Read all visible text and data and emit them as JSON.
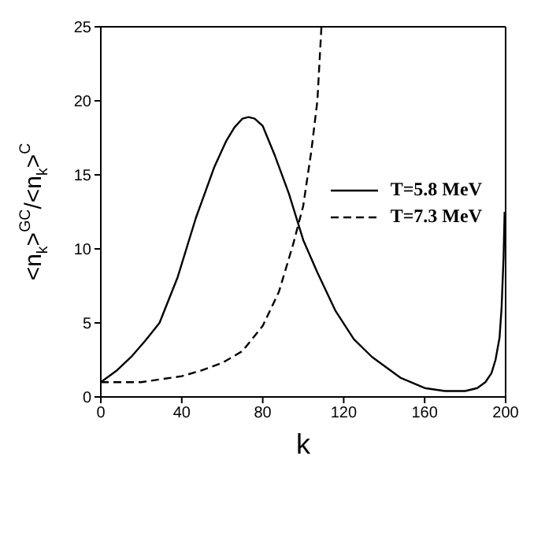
{
  "chart_data": {
    "type": "line",
    "xlabel": "k",
    "ylabel": "<n$_{k}$>$^{GC}$/<n$_{k}$>$^{C}$",
    "xlim": [
      0,
      200
    ],
    "xticks": [
      0,
      40,
      80,
      120,
      160,
      200
    ],
    "ylim": [
      0,
      25
    ],
    "yticks": [
      0,
      5,
      10,
      15,
      20,
      25
    ],
    "legend": "right",
    "grid": false,
    "marker": "none",
    "series": [
      {
        "name": "T=5.8 MeV",
        "color": "#000000",
        "line_style": "solid",
        "x": [
          0,
          8,
          15,
          22,
          29,
          38,
          47,
          56,
          62,
          66,
          70,
          73,
          76,
          80,
          86,
          93,
          100,
          107,
          116,
          125,
          134,
          148,
          160,
          170,
          180,
          186,
          190,
          193,
          195,
          197,
          198,
          199,
          199.5
        ],
        "values": [
          1.0,
          1.8,
          2.7,
          3.8,
          5.0,
          8.1,
          12.1,
          15.5,
          17.3,
          18.2,
          18.8,
          18.9,
          18.8,
          18.3,
          16.3,
          13.7,
          10.6,
          8.4,
          5.8,
          3.9,
          2.7,
          1.3,
          0.6,
          0.4,
          0.4,
          0.6,
          1.0,
          1.6,
          2.5,
          4.0,
          6.0,
          9.5,
          12.5
        ]
      },
      {
        "name": "T=7.3 MeV",
        "color": "#000000",
        "line_style": "dashed",
        "x": [
          0,
          20,
          40,
          50,
          60,
          70,
          80,
          88,
          95,
          100,
          104,
          107,
          109
        ],
        "values": [
          1.0,
          1.0,
          1.4,
          1.8,
          2.3,
          3.1,
          4.8,
          7.1,
          10.3,
          12.9,
          16.6,
          20.0,
          25.0
        ]
      }
    ]
  }
}
